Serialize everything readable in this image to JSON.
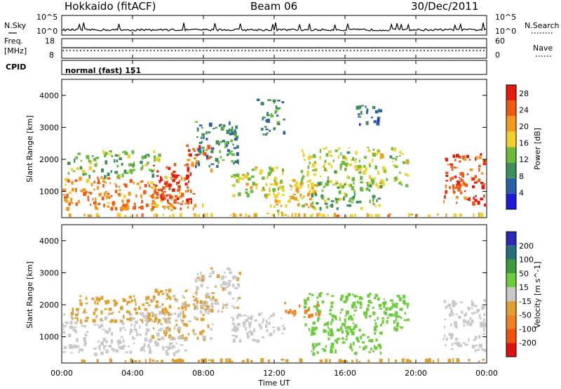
{
  "header": {
    "station": "Hokkaido (fitACF)",
    "beam": "Beam 06",
    "date": "30/Dec/2011"
  },
  "noise_panel": {
    "left_label": "N.Sky",
    "right_label": "N.Search",
    "ticks_top": "10^5",
    "ticks_bottom": "10^0"
  },
  "freq_panel": {
    "left_label_1": "Freq.",
    "left_label_2": "[MHz]",
    "left_ticks": [
      "18",
      "8"
    ],
    "right_ticks": [
      "60",
      "0"
    ],
    "right_label": "Nave"
  },
  "cpid_panel": {
    "label": "CPID",
    "text": "normal (fast) 151"
  },
  "x_axis": {
    "label": "Time UT",
    "ticks": [
      "00:00",
      "04:00",
      "08:00",
      "12:00",
      "16:00",
      "20:00",
      "00:00"
    ]
  },
  "colors": {
    "power_scale": [
      "#1b1bd9",
      "#2a5fa8",
      "#3c8f5a",
      "#6dbb3c",
      "#f0d02a",
      "#f19a1f",
      "#f05a14",
      "#e51b0c"
    ],
    "velocity_scale": [
      "#2a2ab8",
      "#2a6e7e",
      "#3c9b3c",
      "#6dcc3c",
      "#c8c8c8",
      "#e0a030",
      "#f08020",
      "#f05010",
      "#e01010"
    ]
  },
  "chart_data": [
    {
      "type": "heatmap",
      "title": "Power",
      "xlabel": "Time UT",
      "ylabel": "Slant Range [km]",
      "xlim": [
        0,
        24
      ],
      "ylim": [
        180,
        4500
      ],
      "y_ticks": [
        1000,
        2000,
        3000,
        4000
      ],
      "colorbar": {
        "label": "Power [dB]",
        "ticks": [
          4,
          8,
          12,
          16,
          20,
          24,
          28
        ],
        "range": [
          0,
          30
        ]
      },
      "echo_regions": [
        {
          "t0": 0.0,
          "t1": 7.0,
          "r0": 500,
          "r1": 1500,
          "value": 22
        },
        {
          "t0": 0.3,
          "t1": 5.5,
          "r0": 1500,
          "r1": 2300,
          "value": 13
        },
        {
          "t0": 5.0,
          "t1": 7.4,
          "r0": 700,
          "r1": 1900,
          "value": 27
        },
        {
          "t0": 7.0,
          "t1": 8.5,
          "r0": 1700,
          "r1": 2500,
          "value": 24
        },
        {
          "t0": 3.0,
          "t1": 8.0,
          "r0": 450,
          "r1": 700,
          "value": 22
        },
        {
          "t0": 7.5,
          "t1": 10.0,
          "r0": 1800,
          "r1": 3200,
          "value": 9
        },
        {
          "t0": 9.5,
          "t1": 12.5,
          "r0": 900,
          "r1": 1800,
          "value": 16
        },
        {
          "t0": 11.5,
          "t1": 14.5,
          "r0": 300,
          "r1": 1400,
          "value": 18
        },
        {
          "t0": 13.5,
          "t1": 19.5,
          "r0": 1200,
          "r1": 2400,
          "value": 15
        },
        {
          "t0": 14.0,
          "t1": 18.0,
          "r0": 500,
          "r1": 1300,
          "value": 12
        },
        {
          "t0": 21.5,
          "t1": 24.0,
          "r0": 600,
          "r1": 2200,
          "value": 25
        },
        {
          "t0": 11.0,
          "t1": 12.5,
          "r0": 2800,
          "r1": 3900,
          "value": 9
        },
        {
          "t0": 16.5,
          "t1": 18.0,
          "r0": 3100,
          "r1": 3700,
          "value": 7
        },
        {
          "t0": 0.0,
          "t1": 24.0,
          "r0": 180,
          "r1": 320,
          "value": 19
        }
      ]
    },
    {
      "type": "heatmap",
      "title": "Velocity",
      "xlabel": "Time UT",
      "ylabel": "Slant Range [km]",
      "xlim": [
        0,
        24
      ],
      "ylim": [
        180,
        4500
      ],
      "y_ticks": [
        1000,
        2000,
        3000,
        4000
      ],
      "colorbar": {
        "label": "Velocity [m s^-1]",
        "ticks": [
          200,
          100,
          50,
          15,
          -15,
          -50,
          -100,
          -200
        ]
      },
      "echo_regions": [
        {
          "t0": 0.0,
          "t1": 7.0,
          "r0": 500,
          "r1": 1800,
          "value": 0
        },
        {
          "t0": 0.5,
          "t1": 5.5,
          "r0": 1500,
          "r1": 2300,
          "value": -30
        },
        {
          "t0": 5.0,
          "t1": 8.5,
          "r0": 900,
          "r1": 2500,
          "value": -20
        },
        {
          "t0": 7.5,
          "t1": 10.0,
          "r0": 1800,
          "r1": 3200,
          "value": -10
        },
        {
          "t0": 9.5,
          "t1": 12.5,
          "r0": 900,
          "r1": 1800,
          "value": 0
        },
        {
          "t0": 13.5,
          "t1": 19.5,
          "r0": 1200,
          "r1": 2400,
          "value": 40
        },
        {
          "t0": 12.5,
          "t1": 14.5,
          "r0": 1700,
          "r1": 2100,
          "value": -60
        },
        {
          "t0": 14.0,
          "t1": 18.0,
          "r0": 500,
          "r1": 1300,
          "value": 30
        },
        {
          "t0": 21.5,
          "t1": 24.0,
          "r0": 600,
          "r1": 2200,
          "value": 0
        },
        {
          "t0": 0.0,
          "t1": 24.0,
          "r0": 180,
          "r1": 320,
          "value": -40
        }
      ]
    }
  ]
}
